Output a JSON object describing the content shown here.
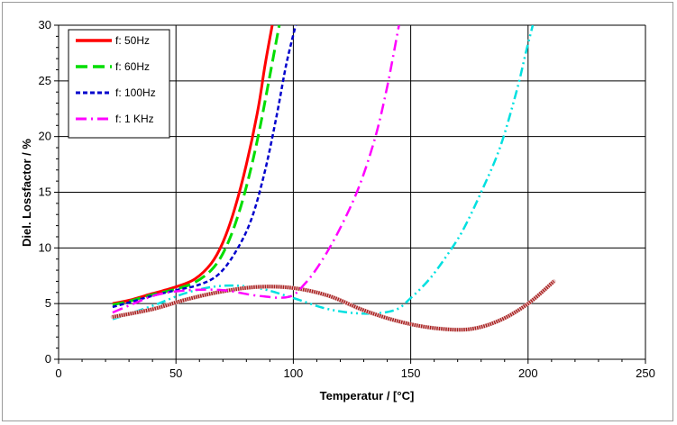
{
  "chart_data": {
    "type": "line",
    "title": "",
    "xlabel": "Temperatur / [°C]",
    "ylabel": "Diel. Lossfactor / %",
    "xlim": [
      0,
      250
    ],
    "ylim": [
      0,
      30
    ],
    "xticks": [
      0,
      50,
      100,
      150,
      200,
      250
    ],
    "yticks": [
      0,
      5,
      10,
      15,
      20,
      25,
      30
    ],
    "grid": true,
    "legend_position": "top-left",
    "series": [
      {
        "name": "f: 50Hz",
        "color": "#ff0000",
        "dash": "solid",
        "points": [
          [
            23,
            5.0
          ],
          [
            30,
            5.3
          ],
          [
            40,
            5.9
          ],
          [
            50,
            6.5
          ],
          [
            58,
            7.2
          ],
          [
            65,
            8.6
          ],
          [
            70,
            10.5
          ],
          [
            75,
            13.5
          ],
          [
            80,
            17.5
          ],
          [
            85,
            22.5
          ],
          [
            88,
            26.5
          ],
          [
            91,
            30
          ]
        ]
      },
      {
        "name": "f: 60Hz",
        "color": "#00dd00",
        "dash": "long-dash",
        "points": [
          [
            23,
            4.9
          ],
          [
            30,
            5.2
          ],
          [
            40,
            5.8
          ],
          [
            50,
            6.3
          ],
          [
            58,
            6.9
          ],
          [
            65,
            8.0
          ],
          [
            70,
            9.5
          ],
          [
            75,
            12.0
          ],
          [
            80,
            15.5
          ],
          [
            85,
            20.0
          ],
          [
            90,
            25.5
          ],
          [
            94,
            30
          ]
        ]
      },
      {
        "name": "f: 100Hz",
        "color": "#0000cc",
        "dash": "short-dash",
        "points": [
          [
            23,
            4.7
          ],
          [
            30,
            5.1
          ],
          [
            40,
            5.7
          ],
          [
            50,
            6.2
          ],
          [
            60,
            6.7
          ],
          [
            68,
            7.6
          ],
          [
            75,
            9.5
          ],
          [
            82,
            12.5
          ],
          [
            88,
            17.0
          ],
          [
            93,
            22.0
          ],
          [
            97,
            26.5
          ],
          [
            101,
            30
          ]
        ]
      },
      {
        "name": "f: 1 KHz",
        "color": "#ff00ff",
        "dash": "dash-dot",
        "points": [
          [
            23,
            4.2
          ],
          [
            32,
            5.0
          ],
          [
            42,
            5.8
          ],
          [
            55,
            6.2
          ],
          [
            70,
            6.2
          ],
          [
            85,
            5.7
          ],
          [
            98,
            5.6
          ],
          [
            105,
            6.8
          ],
          [
            112,
            8.8
          ],
          [
            120,
            11.8
          ],
          [
            128,
            15.5
          ],
          [
            135,
            20.0
          ],
          [
            140,
            24.5
          ],
          [
            145,
            30
          ]
        ]
      },
      {
        "name": "",
        "color": "#00e0e0",
        "dash": "dash-dot-dot",
        "points": [
          [
            23,
            3.6
          ],
          [
            40,
            4.8
          ],
          [
            55,
            6.0
          ],
          [
            70,
            6.6
          ],
          [
            85,
            6.4
          ],
          [
            100,
            5.5
          ],
          [
            115,
            4.5
          ],
          [
            130,
            4.1
          ],
          [
            143,
            4.4
          ],
          [
            150,
            5.5
          ],
          [
            158,
            7.2
          ],
          [
            165,
            9.2
          ],
          [
            172,
            11.5
          ],
          [
            180,
            15.0
          ],
          [
            188,
            19.0
          ],
          [
            195,
            24.0
          ],
          [
            199,
            27.5
          ],
          [
            202,
            30
          ]
        ]
      },
      {
        "name": "",
        "color": "#aa2222",
        "dash": "textured",
        "points": [
          [
            23,
            3.8
          ],
          [
            40,
            4.5
          ],
          [
            55,
            5.4
          ],
          [
            70,
            6.1
          ],
          [
            85,
            6.5
          ],
          [
            100,
            6.4
          ],
          [
            115,
            5.7
          ],
          [
            130,
            4.4
          ],
          [
            145,
            3.4
          ],
          [
            160,
            2.8
          ],
          [
            175,
            2.7
          ],
          [
            188,
            3.5
          ],
          [
            200,
            5.0
          ],
          [
            211,
            7.0
          ]
        ]
      }
    ]
  }
}
